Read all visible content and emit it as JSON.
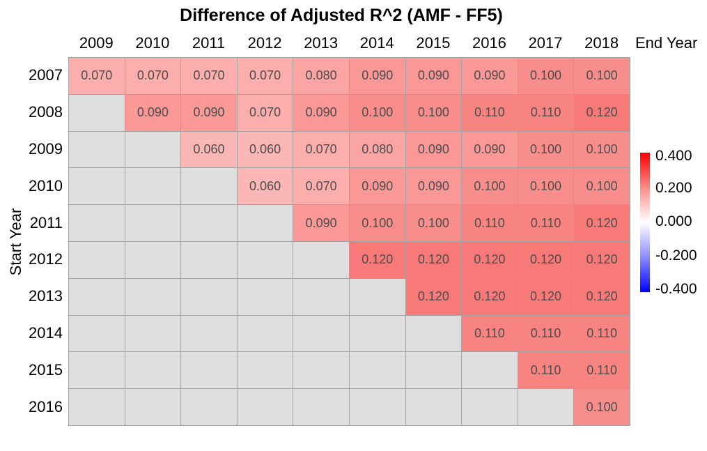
{
  "chart_data": {
    "type": "heatmap",
    "title": "Difference of Adjusted R^2 (AMF - FF5)",
    "xlabel": "End Year",
    "ylabel": "Start Year",
    "x_categories": [
      "2009",
      "2010",
      "2011",
      "2012",
      "2013",
      "2014",
      "2015",
      "2016",
      "2017",
      "2018"
    ],
    "y_categories": [
      "2007",
      "2008",
      "2009",
      "2010",
      "2011",
      "2012",
      "2013",
      "2014",
      "2015",
      "2016"
    ],
    "rows": [
      {
        "label": "2007",
        "cells": [
          "0.070",
          "0.070",
          "0.070",
          "0.070",
          "0.080",
          "0.090",
          "0.090",
          "0.090",
          "0.100",
          "0.100"
        ]
      },
      {
        "label": "2008",
        "cells": [
          "",
          "0.090",
          "0.090",
          "0.070",
          "0.090",
          "0.100",
          "0.100",
          "0.110",
          "0.110",
          "0.120"
        ]
      },
      {
        "label": "2009",
        "cells": [
          "",
          "",
          "0.060",
          "0.060",
          "0.070",
          "0.080",
          "0.090",
          "0.090",
          "0.100",
          "0.100"
        ]
      },
      {
        "label": "2010",
        "cells": [
          "",
          "",
          "",
          "0.060",
          "0.070",
          "0.090",
          "0.090",
          "0.100",
          "0.100",
          "0.100"
        ]
      },
      {
        "label": "2011",
        "cells": [
          "",
          "",
          "",
          "",
          "0.090",
          "0.100",
          "0.100",
          "0.110",
          "0.110",
          "0.120"
        ]
      },
      {
        "label": "2012",
        "cells": [
          "",
          "",
          "",
          "",
          "",
          "0.120",
          "0.120",
          "0.120",
          "0.120",
          "0.120"
        ]
      },
      {
        "label": "2013",
        "cells": [
          "",
          "",
          "",
          "",
          "",
          "",
          "0.120",
          "0.120",
          "0.120",
          "0.120"
        ]
      },
      {
        "label": "2014",
        "cells": [
          "",
          "",
          "",
          "",
          "",
          "",
          "",
          "0.110",
          "0.110",
          "0.110"
        ]
      },
      {
        "label": "2015",
        "cells": [
          "",
          "",
          "",
          "",
          "",
          "",
          "",
          "",
          "0.110",
          "0.110"
        ]
      },
      {
        "label": "2016",
        "cells": [
          "",
          "",
          "",
          "",
          "",
          "",
          "",
          "",
          "",
          "0.100"
        ]
      }
    ],
    "na_color": "#dedede",
    "value_colors": {
      "0.060": "#fbb7b5",
      "0.070": "#fbaeac",
      "0.080": "#faa5a3",
      "0.090": "#f99896",
      "0.100": "#f88e8c",
      "0.110": "#f88482",
      "0.120": "#f77a78"
    },
    "grid_line_color": "#a3a3a3",
    "cell_text_color": "#4d4d4d",
    "colorbar": {
      "ticks": [
        "0.400",
        "0.200",
        "0.000",
        "-0.200",
        "-0.400"
      ],
      "vmin": -0.4,
      "vmax": 0.4,
      "high_color": "#ff0000",
      "mid_color": "#ffffff",
      "low_color": "#0000ff",
      "position": "right"
    }
  }
}
